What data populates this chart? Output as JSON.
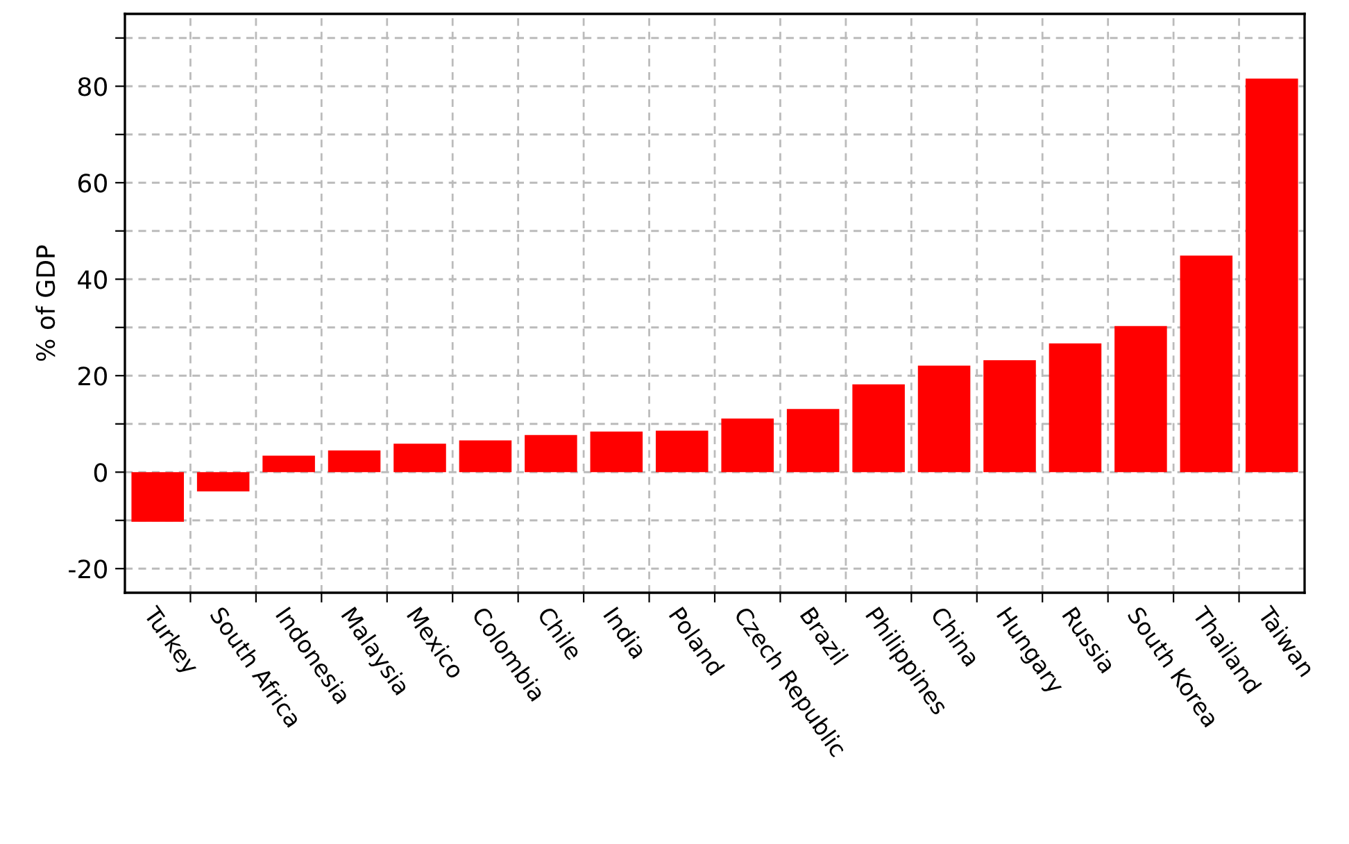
{
  "chart_data": {
    "type": "bar",
    "ylabel": "% of GDP",
    "categories": [
      "Turkey",
      "South Africa",
      "Indonesia",
      "Malaysia",
      "Mexico",
      "Colombia",
      "Chile",
      "India",
      "Poland",
      "Czech Republic",
      "Brazil",
      "Philippines",
      "China",
      "Hungary",
      "Russia",
      "South Korea",
      "Thailand",
      "Taiwan"
    ],
    "values": [
      -10.3,
      -4.0,
      3.4,
      4.5,
      5.9,
      6.6,
      7.7,
      8.4,
      8.6,
      11.1,
      13.1,
      18.2,
      22.1,
      23.2,
      26.7,
      30.3,
      44.9,
      81.6
    ],
    "color": "#ff0000",
    "ylim": [
      -25,
      95
    ],
    "yticks": [
      -20,
      {
        "value": -10,
        "label": null
      },
      0,
      {
        "value": 10,
        "label": null
      },
      20,
      {
        "value": 30,
        "label": null
      },
      40,
      {
        "value": 50,
        "label": null
      },
      60,
      {
        "value": 70,
        "label": null
      },
      80,
      {
        "value": 90,
        "label": null
      }
    ],
    "grid": true
  }
}
